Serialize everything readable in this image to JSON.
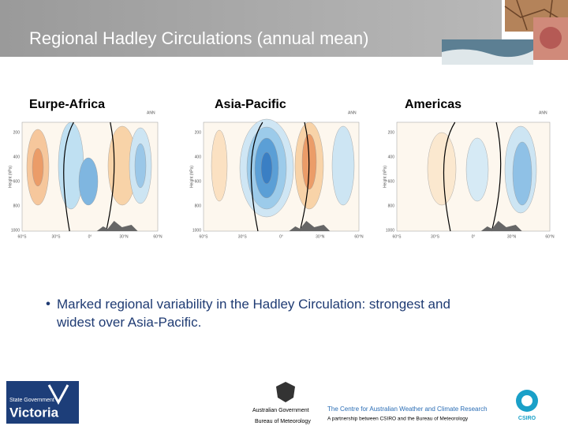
{
  "header": {
    "title": "Regional Hadley Circulations (annual mean)"
  },
  "panels": [
    {
      "label": "Eurpe-Africa",
      "tag": "ANN"
    },
    {
      "label": "Asia-Pacific",
      "tag": "ANN"
    },
    {
      "label": "Americas",
      "tag": "ANN"
    }
  ],
  "axes": {
    "y_title": "Height (hPa)",
    "yticks": [
      "200",
      "400",
      "600",
      "800",
      "1000"
    ],
    "xticks": [
      "60°S",
      "30°S",
      "0°",
      "30°N",
      "60°N"
    ]
  },
  "bullet": {
    "text": "Marked regional variability in the Hadley Circulation: strongest and widest over Asia-Pacific."
  },
  "footer": {
    "victoria_small": "State Government",
    "victoria": "Victoria",
    "gov": "Australian Government",
    "bom": "Bureau of Meteorology",
    "centre": "The Centre for Australian Weather and Climate Research",
    "partnership": "A partnership between CSIRO and the Bureau of Meteorology",
    "csiro": "CSIRO"
  }
}
